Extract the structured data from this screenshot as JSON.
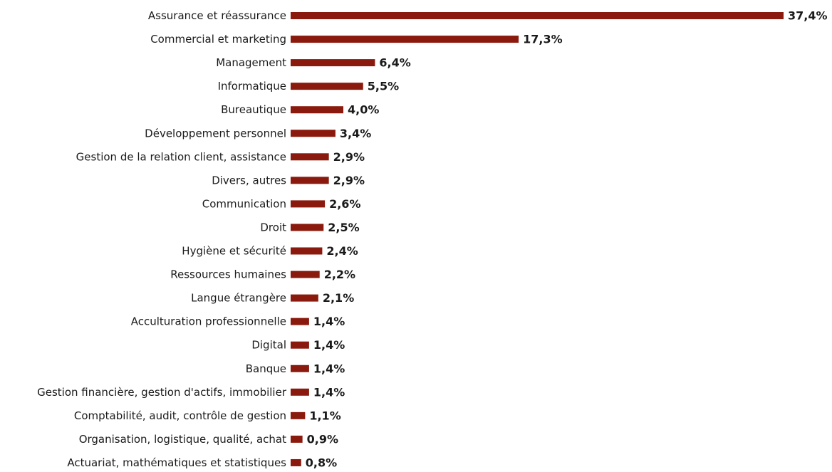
{
  "chart_data": {
    "type": "bar",
    "orientation": "horizontal",
    "categories": [
      "Assurance et réassurance",
      "Commercial et marketing",
      "Management",
      "Informatique",
      "Bureautique",
      "Développement personnel",
      "Gestion de la relation client, assistance",
      "Divers, autres",
      "Communication",
      "Droit",
      "Hygiène et sécurité",
      "Ressources humaines",
      "Langue étrangère",
      "Acculturation professionnelle",
      "Digital",
      "Banque",
      "Gestion financière, gestion d'actifs, immobilier",
      "Comptabilité, audit, contrôle de gestion",
      "Organisation, logistique, qualité, achat",
      "Actuariat, mathématiques et statistiques"
    ],
    "values": [
      37.4,
      17.3,
      6.4,
      5.5,
      4.0,
      3.4,
      2.9,
      2.9,
      2.6,
      2.5,
      2.4,
      2.2,
      2.1,
      1.4,
      1.4,
      1.4,
      1.4,
      1.1,
      0.9,
      0.8
    ],
    "value_labels": [
      "37,4%",
      "17,3%",
      "6,4%",
      "5,5%",
      "4,0%",
      "3,4%",
      "2,9%",
      "2,9%",
      "2,6%",
      "2,5%",
      "2,4%",
      "2,2%",
      "2,1%",
      "1,4%",
      "1,4%",
      "1,4%",
      "1,4%",
      "1,1%",
      "0,9%",
      "0,8%"
    ],
    "unit": "%",
    "bar_color": "#8b1a0e",
    "xlim": [
      0,
      37.4
    ],
    "grid": false,
    "legend": "none"
  }
}
